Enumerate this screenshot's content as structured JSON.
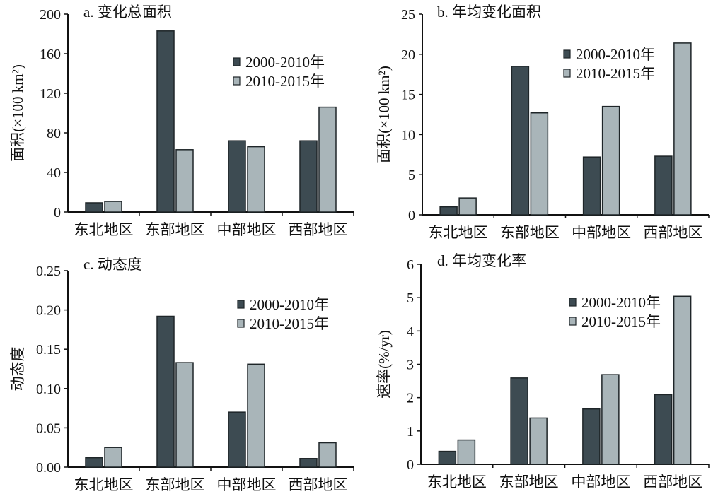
{
  "colors": {
    "series1": "#3d4b52",
    "series2": "#a9b5b9",
    "outline": "#1e2528",
    "axis": "#111111"
  },
  "chart_data": [
    {
      "type": "bar",
      "title": "a. 变化总面积",
      "ylabel": "面积(×100 km²)",
      "xlabel": "",
      "categories": [
        "东北地区",
        "东部地区",
        "中部地区",
        "西部地区"
      ],
      "series": [
        {
          "name": "2000-2010年",
          "values": [
            9.3,
            183,
            72,
            72
          ]
        },
        {
          "name": "2010-2015年",
          "values": [
            10.7,
            63,
            66,
            106
          ]
        }
      ],
      "ylim": [
        0,
        200
      ],
      "yticks": [
        "0",
        "40",
        "80",
        "120",
        "160",
        "200"
      ],
      "ytick_values": [
        0,
        40,
        80,
        120,
        160,
        200
      ],
      "legend": "top-right",
      "grid": false
    },
    {
      "type": "bar",
      "title": "b. 年均变化面积",
      "ylabel": "面积(×100 km²)",
      "xlabel": "",
      "categories": [
        "东北地区",
        "东部地区",
        "中部地区",
        "西部地区"
      ],
      "series": [
        {
          "name": "2000-2010年",
          "values": [
            1.0,
            18.5,
            7.2,
            7.3
          ]
        },
        {
          "name": "2010-2015年",
          "values": [
            2.1,
            12.7,
            13.5,
            21.4
          ]
        }
      ],
      "ylim": [
        0,
        25
      ],
      "yticks": [
        "0",
        "5",
        "10",
        "15",
        "20",
        "25"
      ],
      "ytick_values": [
        0,
        5,
        10,
        15,
        20,
        25
      ],
      "legend": "top-right",
      "grid": false
    },
    {
      "type": "bar",
      "title": "c. 动态度",
      "ylabel": "动态度",
      "xlabel": "",
      "categories": [
        "东北地区",
        "东部地区",
        "中部地区",
        "西部地区"
      ],
      "series": [
        {
          "name": "2000-2010年",
          "values": [
            0.012,
            0.192,
            0.07,
            0.011
          ]
        },
        {
          "name": "2010-2015年",
          "values": [
            0.025,
            0.133,
            0.131,
            0.031
          ]
        }
      ],
      "ylim": [
        0,
        0.25
      ],
      "yticks": [
        "0.00",
        "0.05",
        "0.10",
        "0.15",
        "0.20",
        "0.25"
      ],
      "ytick_values": [
        0,
        0.05,
        0.1,
        0.15,
        0.2,
        0.25
      ],
      "legend": "top-right",
      "grid": false
    },
    {
      "type": "bar",
      "title": "d. 年均变化率",
      "ylabel": "速率(%/yr)",
      "xlabel": "",
      "categories": [
        "东北地区",
        "东部地区",
        "中部地区",
        "西部地区"
      ],
      "series": [
        {
          "name": "2000-2010年",
          "values": [
            0.39,
            2.59,
            1.66,
            2.09
          ]
        },
        {
          "name": "2010-2015年",
          "values": [
            0.73,
            1.39,
            2.69,
            5.04
          ]
        }
      ],
      "ylim": [
        0,
        6
      ],
      "yticks": [
        "0",
        "1",
        "2",
        "3",
        "4",
        "5",
        "6"
      ],
      "ytick_values": [
        0,
        1,
        2,
        3,
        4,
        5,
        6
      ],
      "legend": "top-right",
      "grid": false
    }
  ]
}
